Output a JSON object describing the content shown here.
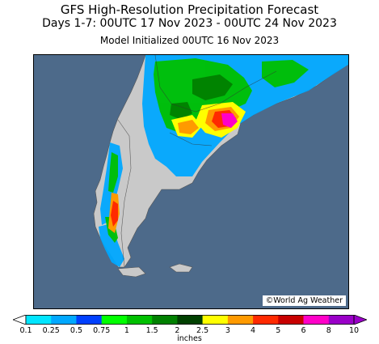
{
  "header": {
    "title": "GFS High-Resolution Precipitation Forecast",
    "valid_period": "Days 1-7: 00UTC 17 Nov 2023 - 00UTC 24 Nov 2023",
    "initialized": "Model Initialized 00UTC 16 Nov 2023"
  },
  "map": {
    "credit": "©World Ag Weather",
    "ocean_color": "#4d6a8a",
    "land_color": "#c9c9c9"
  },
  "legend": {
    "units": "inches",
    "ticks": [
      "0.1",
      "0.25",
      "0.5",
      "0.75",
      "1",
      "1.5",
      "2",
      "2.5",
      "3",
      "4",
      "5",
      "6",
      "8",
      "10"
    ],
    "colors": [
      "#00e5ff",
      "#00a8ff",
      "#0040ff",
      "#00ff00",
      "#00c000",
      "#008000",
      "#004000",
      "#ffff00",
      "#ff9a00",
      "#ff2a00",
      "#c80000",
      "#ff00c8",
      "#9a00c8"
    ]
  }
}
